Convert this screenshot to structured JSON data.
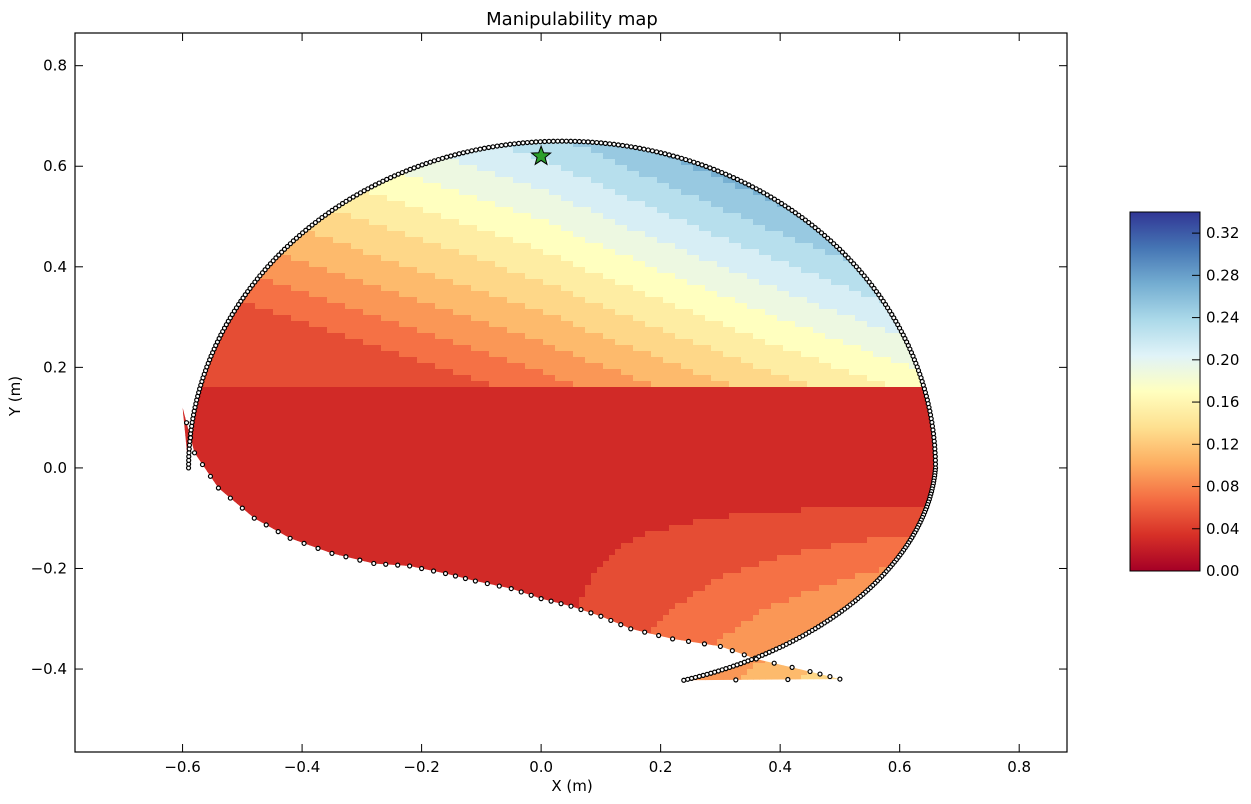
{
  "chart_data": {
    "type": "heatmap",
    "title": "Manipulability map",
    "xlabel": "X (m)",
    "ylabel": "Y (m)",
    "xlim": [
      -0.78,
      0.88
    ],
    "ylim": [
      -0.565,
      0.865
    ],
    "xticks": [
      -0.6,
      -0.4,
      -0.2,
      0.0,
      0.2,
      0.4,
      0.6,
      0.8
    ],
    "xtick_labels": [
      "−0.6",
      "−0.4",
      "−0.2",
      "0.0",
      "0.2",
      "0.4",
      "0.6",
      "0.8"
    ],
    "yticks": [
      -0.4,
      -0.2,
      0.0,
      0.2,
      0.4,
      0.6,
      0.8
    ],
    "ytick_labels": [
      "−0.4",
      "−0.2",
      "0.0",
      "0.2",
      "0.4",
      "0.6",
      "0.8"
    ],
    "grid": false,
    "colormap": "RdYlBu",
    "colorbar": {
      "min": 0.0,
      "max": 0.34,
      "ticks": [
        0.0,
        0.04,
        0.08,
        0.12,
        0.16,
        0.2,
        0.24,
        0.28,
        0.32
      ],
      "tick_labels": [
        "0.00",
        "0.04",
        "0.08",
        "0.12",
        "0.16",
        "0.20",
        "0.24",
        "0.28",
        "0.32"
      ],
      "colors": [
        "#a50026",
        "#d73027",
        "#f46d43",
        "#fdae61",
        "#fee090",
        "#ffffbf",
        "#e0f3f8",
        "#abd9e9",
        "#74add1",
        "#4575b4",
        "#313695"
      ]
    },
    "marker": {
      "x": 0.0,
      "y": 0.62,
      "shape": "star",
      "color": "#2ca02c"
    },
    "workspace_boundary": {
      "x_range": [
        -0.6,
        0.65
      ],
      "y_range": [
        -0.42,
        0.65
      ]
    },
    "field": {
      "plateau_value": 0.032,
      "base_value": 0.05,
      "y_gradient": 0.55,
      "x_gradient": 0.25,
      "pocket_left": {
        "x_range": [
          -0.6,
          0.09
        ],
        "y_range": [
          -0.18,
          0.17
        ],
        "value": 0.025
      },
      "pocket_right": {
        "x_center": 0.58,
        "y_center": 0.0,
        "value": 0.025
      }
    }
  }
}
